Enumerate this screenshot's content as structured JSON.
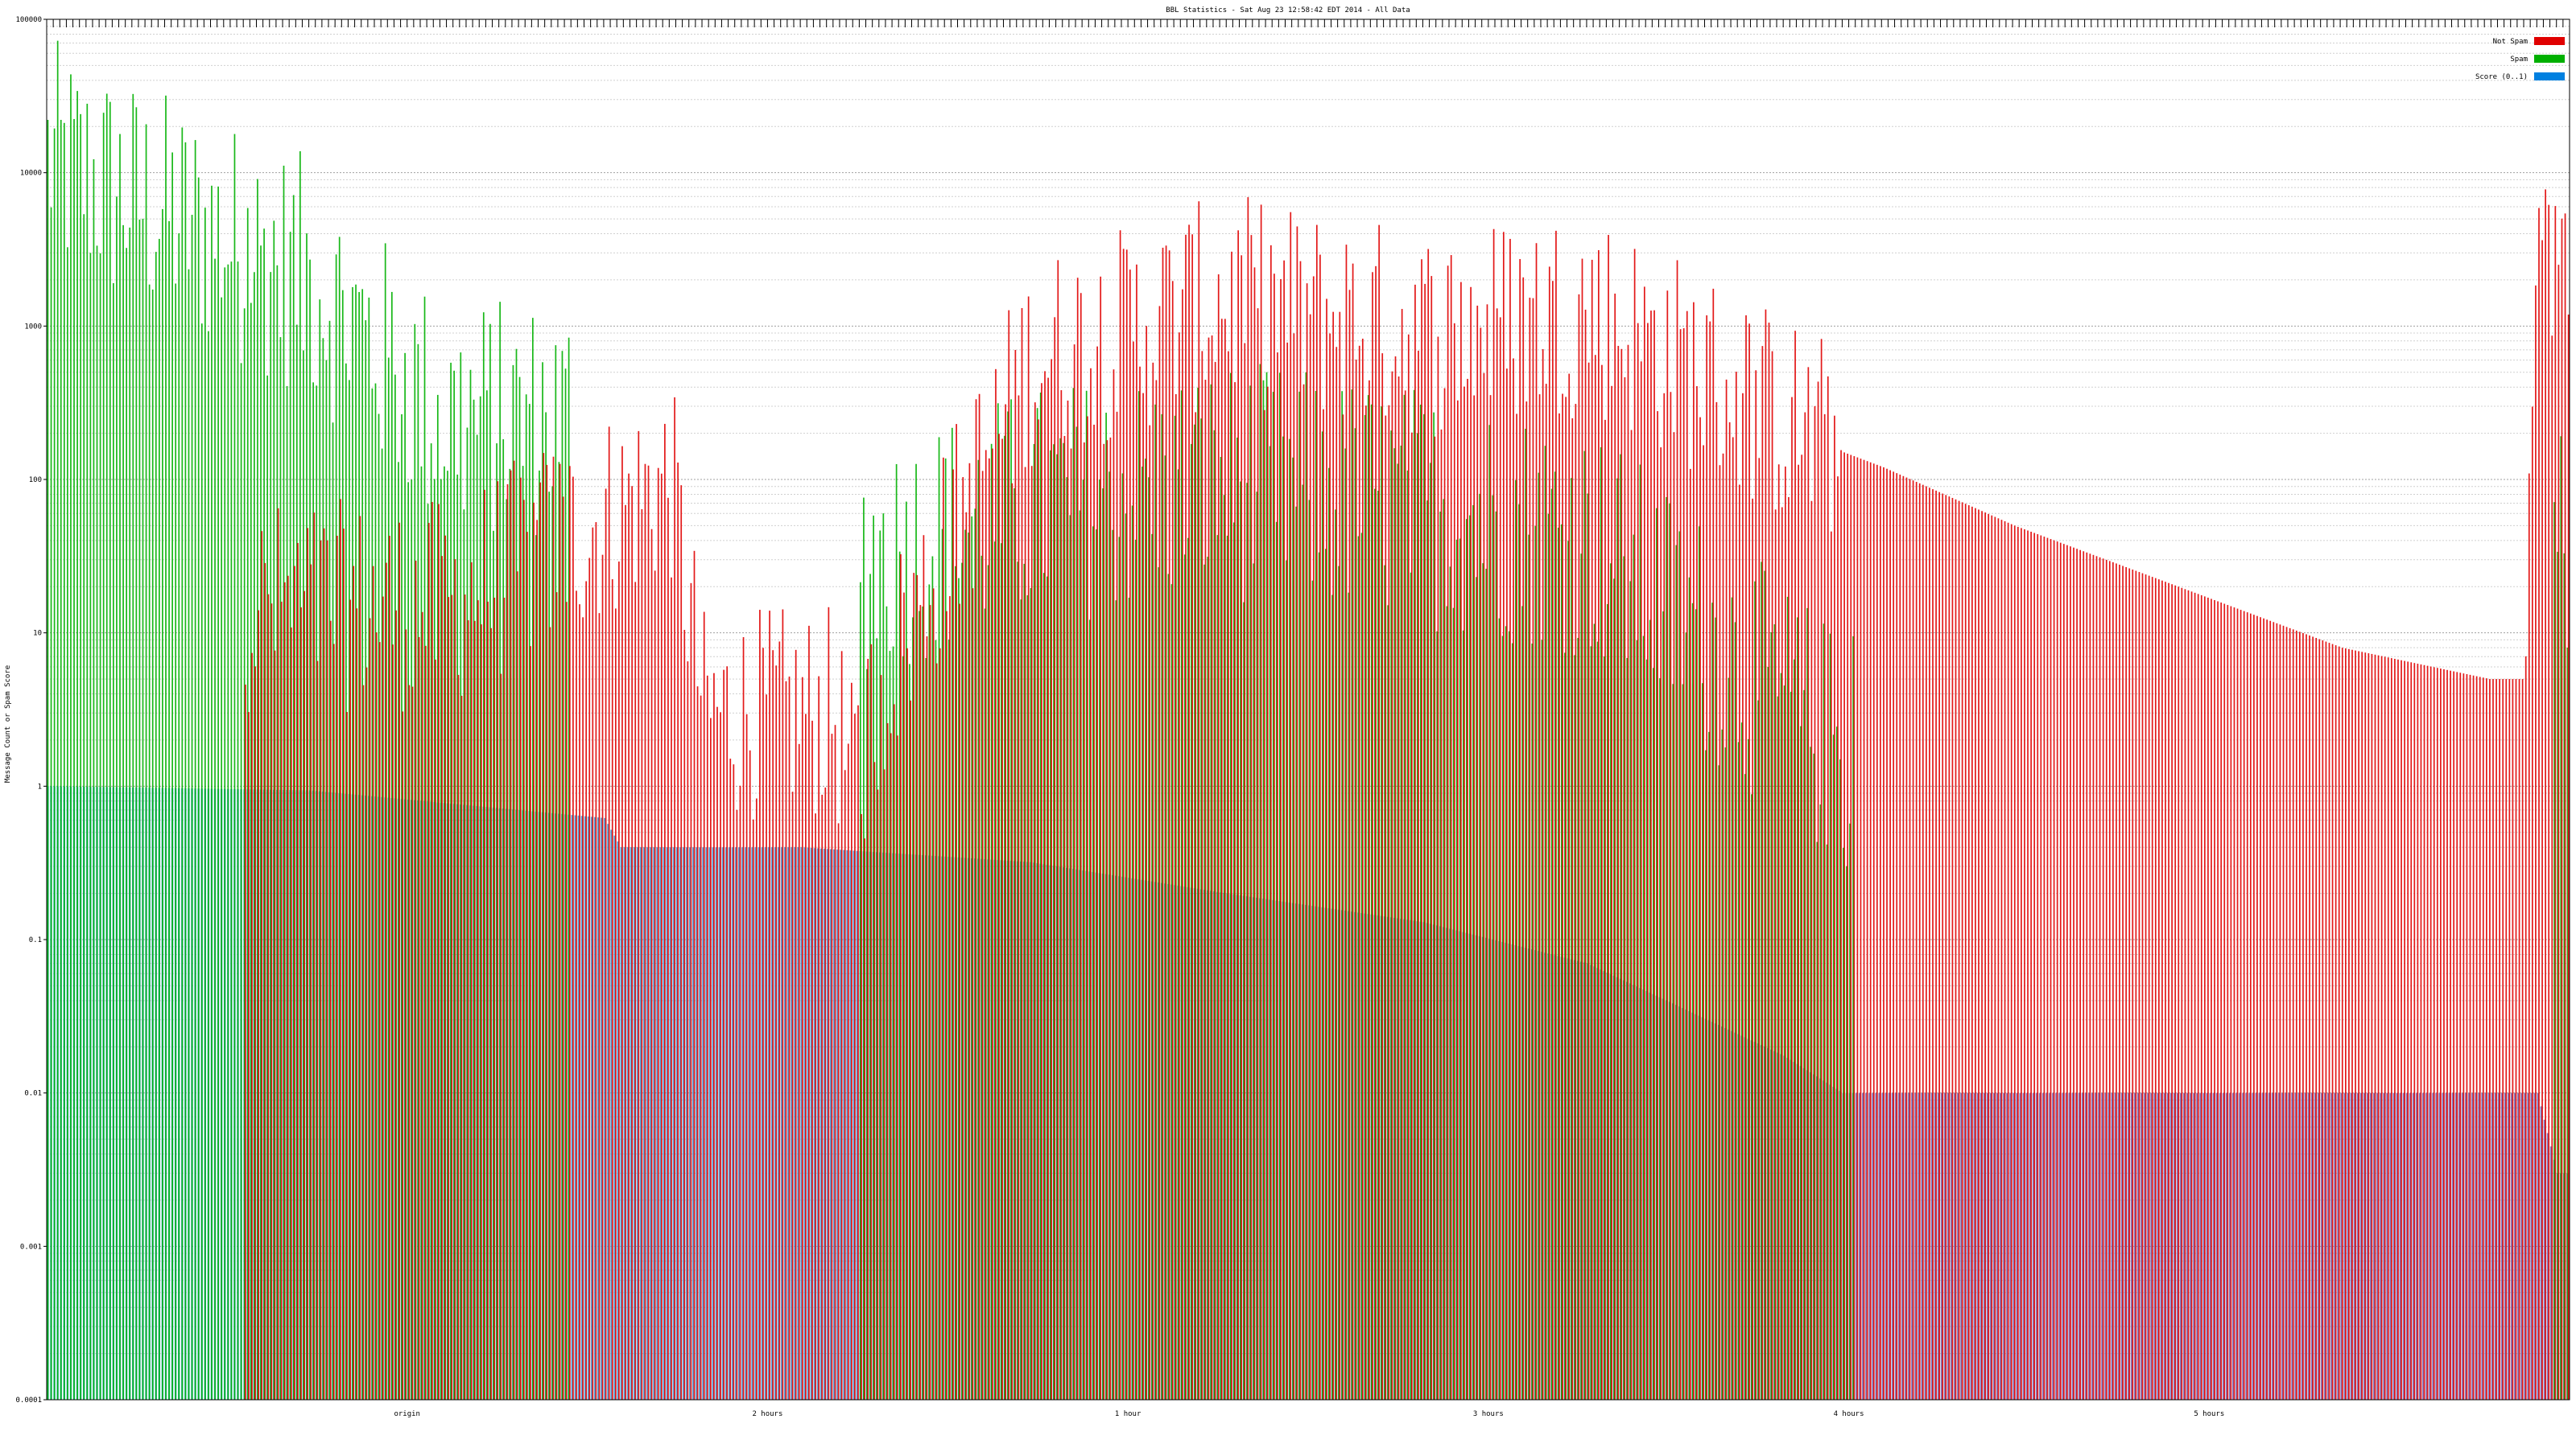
{
  "chart_data": {
    "type": "bar",
    "title": "BBL Statistics - Sat Aug 23 12:58:42 EDT 2014 - All Data",
    "ylabel": "Message Count or Spam Score",
    "y_scale": "log",
    "ylim": [
      0.0001,
      100000
    ],
    "y_ticks": [
      "100000",
      "10000",
      "1000",
      "100",
      "10",
      "1",
      "0.1",
      "0.01",
      "0.001",
      "0.0001"
    ],
    "grid": true,
    "legend_position": "top-right",
    "legend": [
      {
        "label": "Not Spam",
        "color": "#e00000"
      },
      {
        "label": "Spam",
        "color": "#00b000"
      },
      {
        "label": "Score (0..1)",
        "color": "#0080e0"
      }
    ],
    "category_label_samples": [
      "origin",
      "2 hours",
      "1 hour",
      "3 hours",
      "4 hours",
      "5 hours"
    ],
    "segments": {
      "score_profile": [
        [
          0,
          1.0
        ],
        [
          80,
          0.94
        ],
        [
          170,
          0.62
        ],
        [
          175,
          0.4
        ],
        [
          230,
          0.4
        ],
        [
          300,
          0.32
        ],
        [
          360,
          0.2
        ],
        [
          420,
          0.13
        ],
        [
          470,
          0.07
        ],
        [
          500,
          0.035
        ],
        [
          530,
          0.0175
        ],
        [
          548,
          0.01
        ],
        [
          760,
          0.01
        ],
        [
          766,
          0.003
        ]
      ],
      "spam_profile": [
        [
          0,
          15000
        ],
        [
          80,
          2500
        ],
        [
          120,
          300
        ],
        [
          200,
          0
        ],
        [
          240,
          0
        ],
        [
          255,
          40
        ],
        [
          300,
          80
        ],
        [
          360,
          120
        ],
        [
          420,
          80
        ],
        [
          470,
          50
        ],
        [
          548,
          2
        ],
        [
          555,
          0
        ],
        [
          700,
          0
        ],
        [
          760,
          0
        ],
        [
          770,
          50
        ]
      ],
      "notspam_profile": [
        [
          0,
          0
        ],
        [
          120,
          15
        ],
        [
          190,
          100
        ],
        [
          200,
          3
        ],
        [
          240,
          3
        ],
        [
          245,
          1
        ],
        [
          255,
          5
        ],
        [
          300,
          600
        ],
        [
          360,
          1500
        ],
        [
          420,
          900
        ],
        [
          470,
          1300
        ],
        [
          548,
          150
        ],
        [
          560,
          120
        ],
        [
          600,
          50
        ],
        [
          650,
          20
        ],
        [
          700,
          8
        ],
        [
          745,
          5
        ],
        [
          755,
          5
        ],
        [
          760,
          4000
        ],
        [
          770,
          3000
        ]
      ]
    },
    "series_colors": {
      "notspam": "#e00000",
      "spam": "#00b000",
      "score_start": "#21a9e0",
      "score_end": "#6c68b8"
    }
  }
}
